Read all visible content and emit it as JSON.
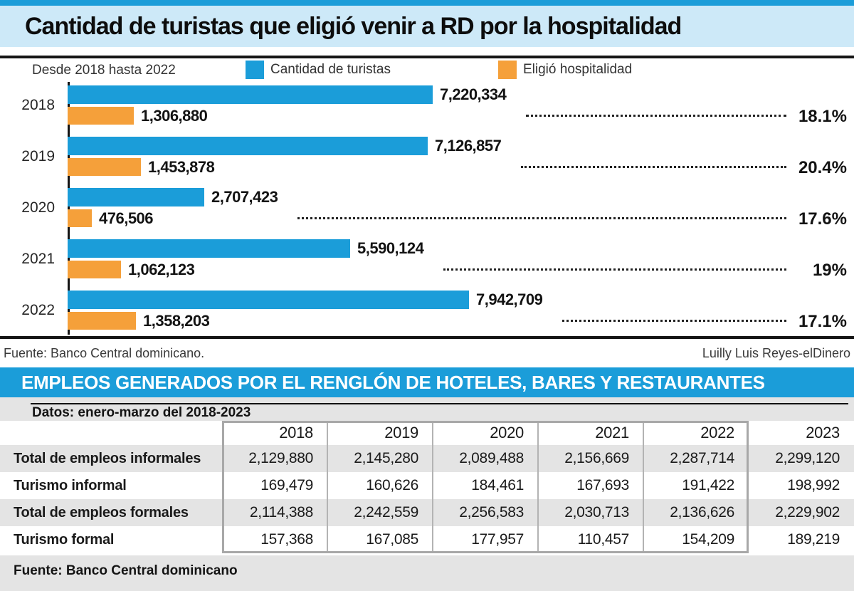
{
  "colors": {
    "accent_blue": "#1b9dd9",
    "light_blue": "#cde9f8",
    "orange": "#f5a03a",
    "row_band_gray": "#e4e4e4",
    "table_border_gray": "#a8a8a8"
  },
  "header": {
    "title": "Cantidad de turistas que eligió venir a RD por la hospitalidad"
  },
  "chart": {
    "subtitle": "Desde 2018 hasta 2022",
    "legend": [
      {
        "label": "Cantidad de turistas",
        "color": "#1b9dd9"
      },
      {
        "label": "Eligió hospitalidad",
        "color": "#f5a03a"
      }
    ]
  },
  "chart_data": {
    "type": "bar",
    "orientation": "horizontal",
    "title": "Cantidad de turistas que eligió venir a RD por la hospitalidad",
    "categories": [
      "2018",
      "2019",
      "2020",
      "2021",
      "2022"
    ],
    "series": [
      {
        "name": "Cantidad de turistas",
        "color": "#1b9dd9",
        "values": [
          7220334,
          7126857,
          2707423,
          5590124,
          7942709
        ],
        "labels": [
          "7,220,334",
          "7,126,857",
          "2,707,423",
          "5,590,124",
          "7,942,709"
        ]
      },
      {
        "name": "Eligió hospitalidad",
        "color": "#f5a03a",
        "values": [
          1306880,
          1453878,
          476506,
          1062123,
          1358203
        ],
        "labels": [
          "1,306,880",
          "1,453,878",
          "476,506",
          "1,062,123",
          "1,358,203"
        ]
      }
    ],
    "percent_labels": [
      "18.1%",
      "20.4%",
      "17.6%",
      "19%",
      "17.1%"
    ],
    "percent_values": [
      18.1,
      20.4,
      17.6,
      19,
      17.1
    ],
    "xlim": [
      0,
      7942709
    ],
    "grid": false,
    "legend_position": "top"
  },
  "chart_source": {
    "left": "Fuente: Banco Central dominicano.",
    "right": "Luilly Luis Reyes-elDinero"
  },
  "table_section": {
    "banner": "EMPLEOS GENERADOS POR EL RENGLÓN DE HOTELES, BARES Y RESTAURANTES",
    "note": "Datos: enero-marzo del 2018-2023",
    "columns": [
      "2018",
      "2019",
      "2020",
      "2021",
      "2022",
      "2023"
    ],
    "rows": [
      {
        "label": "Total de empleos informales",
        "values": [
          "2,129,880",
          "2,145,280",
          "2,089,488",
          "2,156,669",
          "2,287,714",
          "2,299,120"
        ]
      },
      {
        "label": "Turismo informal",
        "values": [
          "169,479",
          "160,626",
          "184,461",
          "167,693",
          "191,422",
          "198,992"
        ]
      },
      {
        "label": "Total de empleos formales",
        "values": [
          "2,114,388",
          "2,242,559",
          "2,256,583",
          "2,030,713",
          "2,136,626",
          "2,229,902"
        ]
      },
      {
        "label": "Turismo formal",
        "values": [
          "157,368",
          "167,085",
          "177,957",
          "110,457",
          "154,209",
          "189,219"
        ]
      }
    ],
    "source": "Fuente: Banco Central dominicano"
  }
}
